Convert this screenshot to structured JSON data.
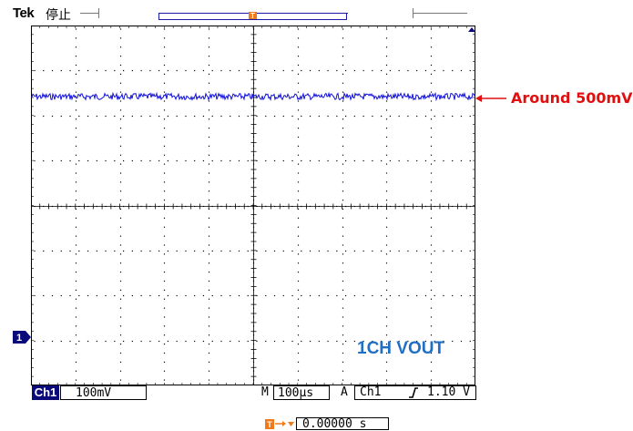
{
  "header": {
    "brand": "Tek",
    "run_status": "停止"
  },
  "markers": {
    "trigger_glyph": "T",
    "channel_glyph": "1"
  },
  "annotation": {
    "text": "Around 500mV",
    "color": "#e01010"
  },
  "channel_label": "1CH VOUT",
  "status_bar": {
    "channel": "Ch1",
    "volts_per_div": "100mV",
    "timebase_prefix": "M",
    "timebase": "100μs",
    "trigger_mode": "A",
    "trigger_source": "Ch1",
    "trigger_level": "1.10 V"
  },
  "horizontal_position": {
    "value": "0.00000 s"
  },
  "colors": {
    "trace": "#1010d8",
    "trigger": "#f07a1a",
    "channel_badge": "#0a0a7a",
    "grid": "#000000"
  },
  "icons": [
    "trigger-marker-icon",
    "ch1-ground-marker-icon",
    "trigger-slope-rising-icon",
    "horizontal-position-icon",
    "arrow-left-icon"
  ]
}
